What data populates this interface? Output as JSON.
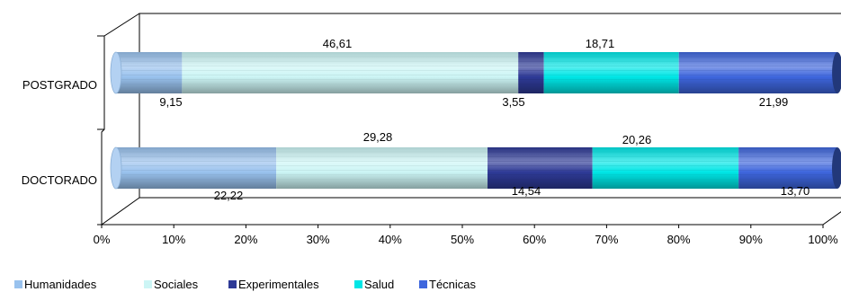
{
  "chart_data": {
    "type": "bar",
    "orientation": "horizontal",
    "stacked": "percent",
    "categories": [
      "POSTGRADO",
      "DOCTORADO"
    ],
    "series": [
      {
        "name": "Humanidades",
        "values": [
          9.15,
          22.22
        ],
        "labels": [
          "9,15",
          "22,22"
        ],
        "color": "#99c2ee"
      },
      {
        "name": "Sociales",
        "values": [
          46.61,
          29.28
        ],
        "labels": [
          "46,61",
          "29,28"
        ],
        "color": "#ccf5f5"
      },
      {
        "name": "Experimentales",
        "values": [
          3.55,
          14.54
        ],
        "labels": [
          "3,55",
          "14,54"
        ],
        "color": "#2e3a96"
      },
      {
        "name": "Salud",
        "values": [
          18.71,
          20.26
        ],
        "labels": [
          "18,71",
          "20,26"
        ],
        "color": "#00e6e6"
      },
      {
        "name": "Técnicas",
        "values": [
          21.99,
          13.7
        ],
        "labels": [
          "21,99",
          "13,70"
        ],
        "color": "#3e66dd"
      }
    ],
    "xticks": [
      "0%",
      "10%",
      "20%",
      "30%",
      "40%",
      "50%",
      "60%",
      "70%",
      "80%",
      "90%",
      "100%"
    ],
    "xlim": [
      0,
      100
    ],
    "grid": false,
    "legend": "bottom-left"
  }
}
